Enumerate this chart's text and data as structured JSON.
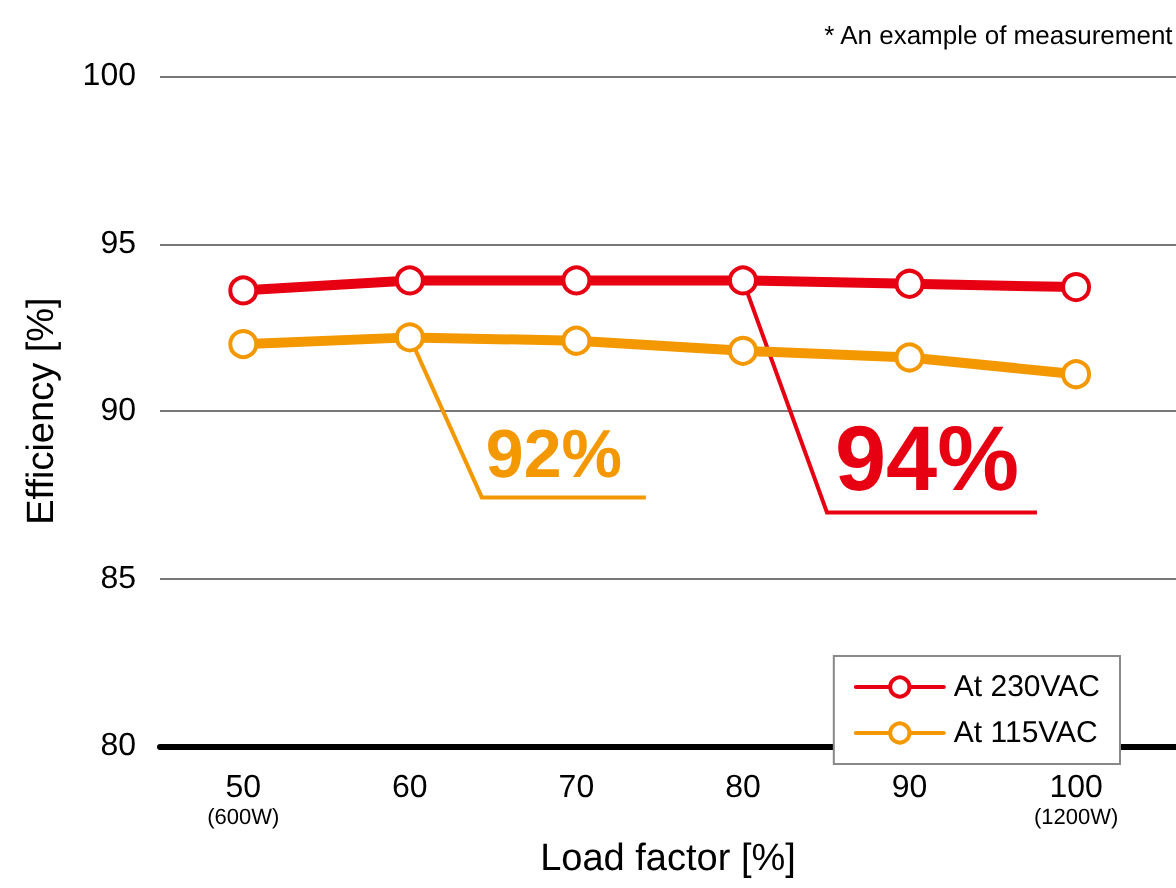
{
  "chart_data": {
    "type": "line",
    "xlabel": "Load factor [%]",
    "ylabel": "Efficiency [%]",
    "x": [
      50,
      60,
      70,
      80,
      90,
      100
    ],
    "series": [
      {
        "name": "At 230VAC",
        "color": "#e60012",
        "values": [
          93.6,
          93.9,
          93.9,
          93.9,
          93.8,
          93.7
        ]
      },
      {
        "name": "At 115VAC",
        "color": "#f39800",
        "values": [
          92.0,
          92.2,
          92.1,
          91.8,
          91.6,
          91.1
        ]
      }
    ],
    "xlim": [
      45,
      106
    ],
    "xticks": [
      {
        "value": 50,
        "label": "50\n(600W)"
      },
      60,
      70,
      80,
      90,
      {
        "value": 100,
        "label": "100\n(1200W)"
      }
    ],
    "ylim": [
      80,
      100
    ],
    "yticks": [
      80,
      85,
      90,
      95,
      100
    ],
    "grid": "y",
    "legend": "bottom right",
    "marker": "circle",
    "line_style": "solid",
    "annotations": [
      "* An example of measurement",
      {
        "text": "92%",
        "x": 60,
        "y": 92.2
      },
      {
        "text": "94%",
        "x": 80,
        "y": 93.9
      }
    ]
  }
}
